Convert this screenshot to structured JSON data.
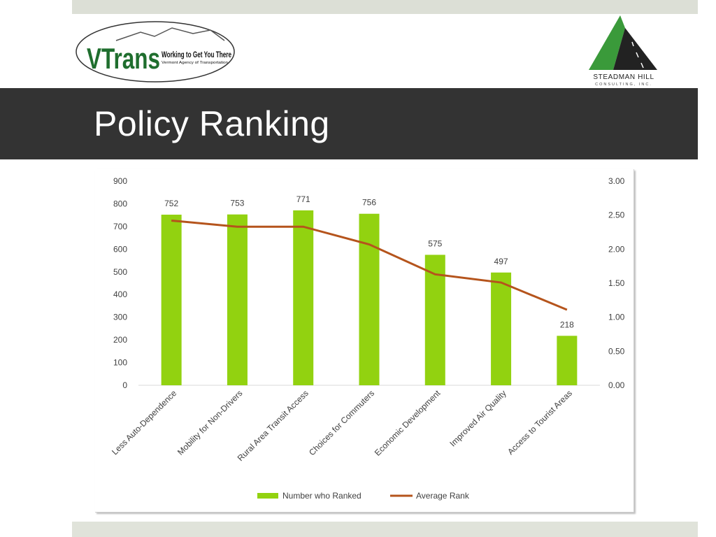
{
  "slide": {
    "title": "Policy Ranking"
  },
  "logos": {
    "vtrans_name": "VTrans",
    "vtrans_tagline": "Working to Get You There",
    "vtrans_agency": "Vermont Agency of Transportation",
    "steadman_name": "STEADMAN HILL",
    "steadman_sub": "CONSULTING, INC."
  },
  "colors": {
    "bar": "#92d210",
    "line": "#b5541c",
    "title_band": "#333333",
    "logo_green": "#3a9a3a"
  },
  "chart_data": {
    "type": "bar",
    "categories": [
      "Less Auto-Dependence",
      "Mobility for Non-Drivers",
      "Rural Area Transit Access",
      "Choices for Commuters",
      "Economic Development",
      "Improved Air Quality",
      "Access to Tourist Areas"
    ],
    "series": [
      {
        "name": "Number who Ranked",
        "type": "bar",
        "axis": "left",
        "values": [
          752,
          753,
          771,
          756,
          575,
          497,
          218
        ]
      },
      {
        "name": "Average Rank",
        "type": "line",
        "axis": "right",
        "values": [
          2.42,
          2.33,
          2.33,
          2.07,
          1.63,
          1.51,
          1.11
        ]
      }
    ],
    "y_left": {
      "ylim": [
        0,
        900
      ],
      "ticks": [
        "0",
        "100",
        "200",
        "300",
        "400",
        "500",
        "600",
        "700",
        "800",
        "900"
      ]
    },
    "y_right": {
      "ylim": [
        0,
        3
      ],
      "ticks": [
        "0.00",
        "0.50",
        "1.00",
        "1.50",
        "2.00",
        "2.50",
        "3.00"
      ]
    },
    "legend_position": "bottom",
    "grid": false
  }
}
